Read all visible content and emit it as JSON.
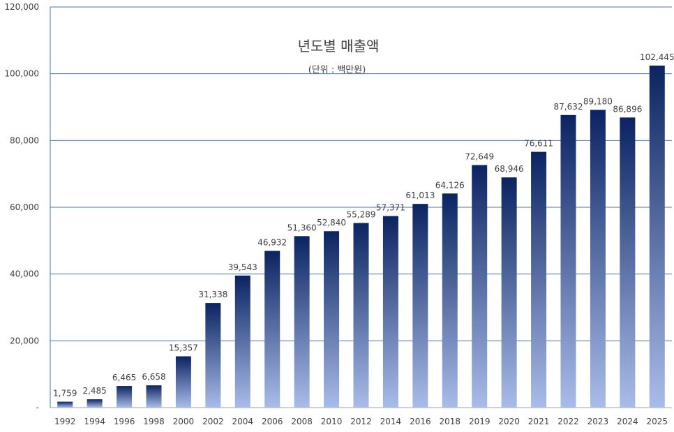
{
  "chart_data": {
    "type": "bar",
    "title": "년도별 매출액",
    "subtitle": "(단위 : 백만원)",
    "xlabel": "",
    "ylabel": "",
    "ylim": [
      0,
      120000
    ],
    "grid": true,
    "yticks": [
      0,
      20000,
      40000,
      60000,
      80000,
      100000,
      120000
    ],
    "ytick_labels": [
      "-",
      "20,000",
      "40,000",
      "60,000",
      "80,000",
      "100,000",
      "120,000"
    ],
    "categories": [
      "1992",
      "1994",
      "1996",
      "1998",
      "2000",
      "2002",
      "2004",
      "2006",
      "2008",
      "2010",
      "2012",
      "2014",
      "2016",
      "2018",
      "2019",
      "2020",
      "2021",
      "2022",
      "2023",
      "2024",
      "2025"
    ],
    "values": [
      1759,
      2485,
      6465,
      6658,
      15357,
      31338,
      39543,
      46932,
      51360,
      52840,
      55289,
      57371,
      61013,
      64126,
      72649,
      68946,
      76611,
      87632,
      89180,
      86896,
      102445
    ],
    "data_labels": [
      "1,759",
      "2,485",
      "6,465",
      "6,658",
      "15,357",
      "31,338",
      "39,543",
      "46,932",
      "51,360",
      "52,840",
      "55,289",
      "57,371",
      "61,013",
      "64,126",
      "72,649",
      "68,946",
      "76,611",
      "87,632",
      "89,180",
      "86,896",
      "102,445"
    ],
    "colors": {
      "bar_top": "#0b2461",
      "bar_bottom": "#a9bce9",
      "grid": "#4a72b0"
    }
  }
}
